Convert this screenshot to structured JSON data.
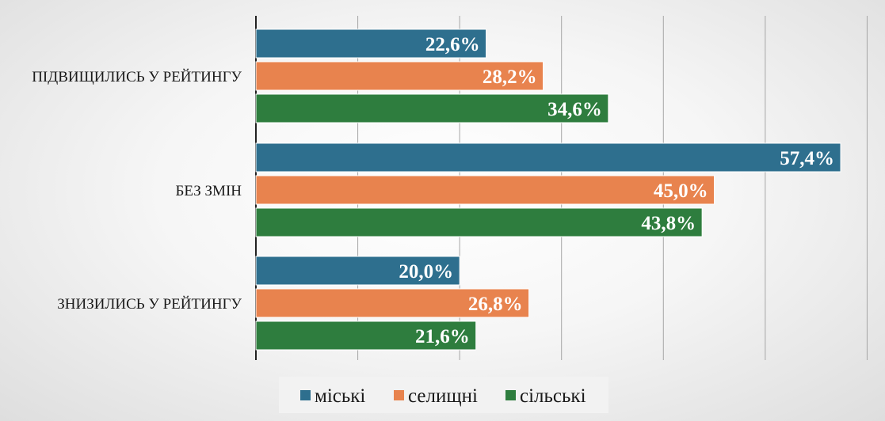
{
  "chart_data": {
    "type": "bar",
    "orientation": "horizontal",
    "categories": [
      "ПІДВИЩИЛИСЬ У РЕЙТИНГУ",
      "БЕЗ ЗМІН",
      "ЗНИЗИЛИСЬ У РЕЙТИНГУ"
    ],
    "series": [
      {
        "name": "міські",
        "values": [
          22.6,
          57.4,
          20.0
        ],
        "labels": [
          "22,6%",
          "57,4%",
          "20,0%"
        ],
        "color": "#2e6f8e"
      },
      {
        "name": "селищні",
        "values": [
          28.2,
          45.0,
          26.8
        ],
        "labels": [
          "28,2%",
          "45,0%",
          "26,8%"
        ],
        "color": "#e8834e"
      },
      {
        "name": "сільські",
        "values": [
          34.6,
          43.8,
          21.6
        ],
        "labels": [
          "34,6%",
          "43,8%",
          "21,6%"
        ],
        "color": "#2e7d3e"
      }
    ],
    "xlim": [
      0,
      60
    ],
    "grid": true,
    "legend_position": "bottom"
  }
}
